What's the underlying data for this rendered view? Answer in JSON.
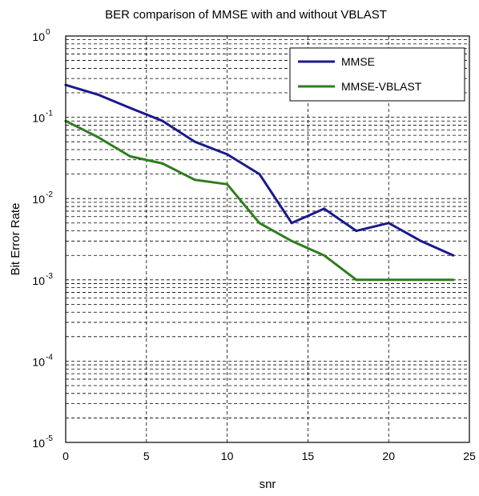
{
  "chart_data": {
    "type": "line",
    "title": "BER  comparison of MMSE with and without VBLAST",
    "xlabel": "snr",
    "ylabel": "Bit Error Rate",
    "xlim": [
      0,
      25
    ],
    "ylim": [
      1e-05,
      1
    ],
    "yscale": "log",
    "grid": true,
    "legend_position": "top-right",
    "xticks": [
      0,
      5,
      10,
      15,
      20,
      25
    ],
    "yticks": [
      {
        "base": "10",
        "exp": "-5"
      },
      {
        "base": "10",
        "exp": "-4"
      },
      {
        "base": "10",
        "exp": "-3"
      },
      {
        "base": "10",
        "exp": "-2"
      },
      {
        "base": "10",
        "exp": "-1"
      },
      {
        "base": "10",
        "exp": "0"
      }
    ],
    "x": [
      0,
      2,
      4,
      6,
      8,
      10,
      12,
      14,
      16,
      18,
      20,
      22,
      24
    ],
    "series": [
      {
        "name": "MMSE",
        "color": "#1a1a8c",
        "values": [
          0.25,
          0.19,
          0.13,
          0.09,
          0.05,
          0.035,
          0.02,
          0.005,
          0.0075,
          0.004,
          0.005,
          0.003,
          0.002
        ]
      },
      {
        "name": "MMSE-VBLAST",
        "color": "#2e7d1e",
        "values": [
          0.09,
          0.057,
          0.033,
          0.027,
          0.017,
          0.015,
          0.005,
          0.003,
          0.002,
          0.001,
          0.001,
          0.001,
          0.001
        ]
      }
    ]
  }
}
